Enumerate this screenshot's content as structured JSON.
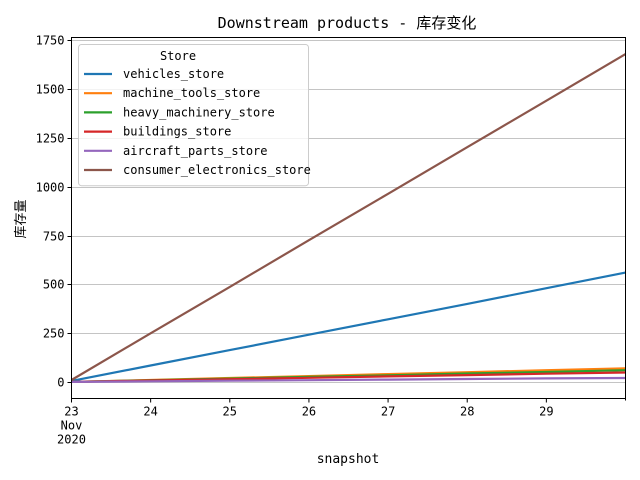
{
  "chart_data": {
    "type": "line",
    "title": "Downstream products - 库存变化",
    "xlabel": "snapshot",
    "ylabel": "库存量",
    "x": [
      "2020-11-23",
      "2020-11-24",
      "2020-11-25",
      "2020-11-26",
      "2020-11-27",
      "2020-11-28",
      "2020-11-29",
      "2020-11-30"
    ],
    "x_tick_labels": [
      {
        "day": "23",
        "month": "Nov",
        "year": "2020"
      },
      {
        "day": "24"
      },
      {
        "day": "25"
      },
      {
        "day": "26"
      },
      {
        "day": "27"
      },
      {
        "day": "28"
      },
      {
        "day": "29"
      }
    ],
    "ylim": [
      -85,
      1765
    ],
    "yticks": [
      0,
      250,
      500,
      750,
      1000,
      1250,
      1500,
      1750
    ],
    "grid": "horizontal",
    "legend": {
      "title": "Store",
      "placement": "upper-left"
    },
    "series": [
      {
        "name": "vehicles_store",
        "color": "#1f77b4",
        "values": [
          5,
          84,
          163,
          242,
          321,
          400,
          480,
          560
        ]
      },
      {
        "name": "machine_tools_store",
        "color": "#ff7f0e",
        "values": [
          0,
          10,
          20,
          30,
          40,
          50,
          60,
          70
        ]
      },
      {
        "name": "heavy_machinery_store",
        "color": "#2ca02c",
        "values": [
          0,
          9,
          17,
          26,
          34,
          43,
          51,
          60
        ]
      },
      {
        "name": "buildings_store",
        "color": "#d62728",
        "values": [
          0,
          7,
          14,
          21,
          28,
          35,
          42,
          48
        ]
      },
      {
        "name": "aircraft_parts_store",
        "color": "#9467bd",
        "values": [
          0,
          3,
          6,
          9,
          12,
          15,
          18,
          20
        ]
      },
      {
        "name": "consumer_electronics_store",
        "color": "#8c564b",
        "values": [
          10,
          249,
          487,
          726,
          964,
          1203,
          1441,
          1680
        ]
      }
    ]
  }
}
